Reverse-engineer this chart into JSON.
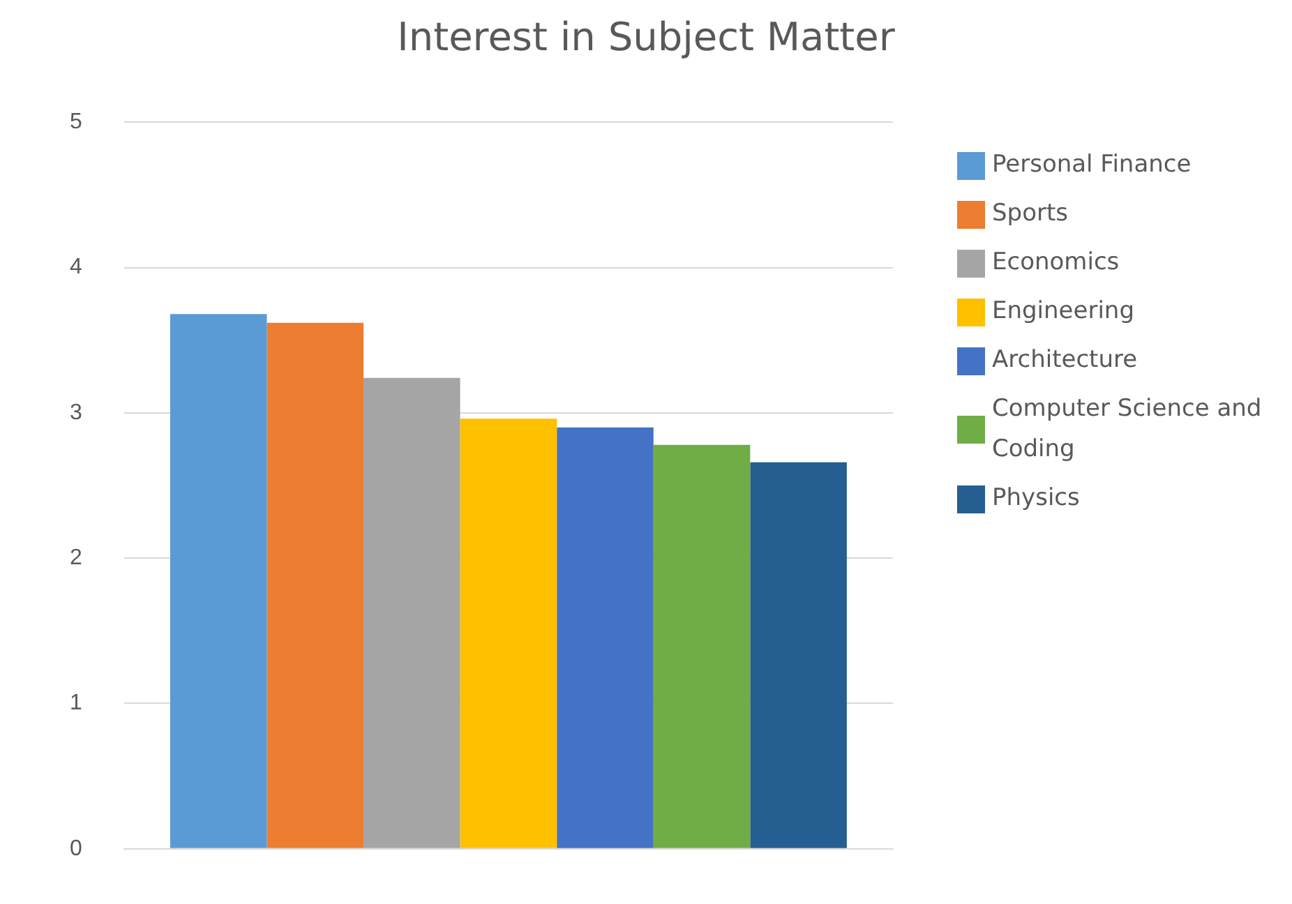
{
  "chart_data": {
    "type": "bar",
    "title": "Interest in Subject Matter",
    "categories": [
      null
    ],
    "series": [
      {
        "name": "Personal Finance",
        "color": "#5b9bd5",
        "values": [
          3.68
        ]
      },
      {
        "name": "Sports",
        "color": "#ed7d31",
        "values": [
          3.62
        ]
      },
      {
        "name": "Economics",
        "color": "#a5a5a5",
        "values": [
          3.24
        ]
      },
      {
        "name": "Engineering",
        "color": "#ffc000",
        "values": [
          2.96
        ]
      },
      {
        "name": "Architecture",
        "color": "#4472c4",
        "values": [
          2.9
        ]
      },
      {
        "name": "Computer Science and Coding",
        "color": "#70ad47",
        "values": [
          2.78
        ]
      },
      {
        "name": "Physics",
        "color": "#255e91",
        "values": [
          2.66
        ]
      }
    ],
    "ylim": [
      0,
      5
    ],
    "yticks": [
      0,
      1,
      2,
      3,
      4,
      5
    ],
    "grid": "y",
    "legend": "right"
  }
}
